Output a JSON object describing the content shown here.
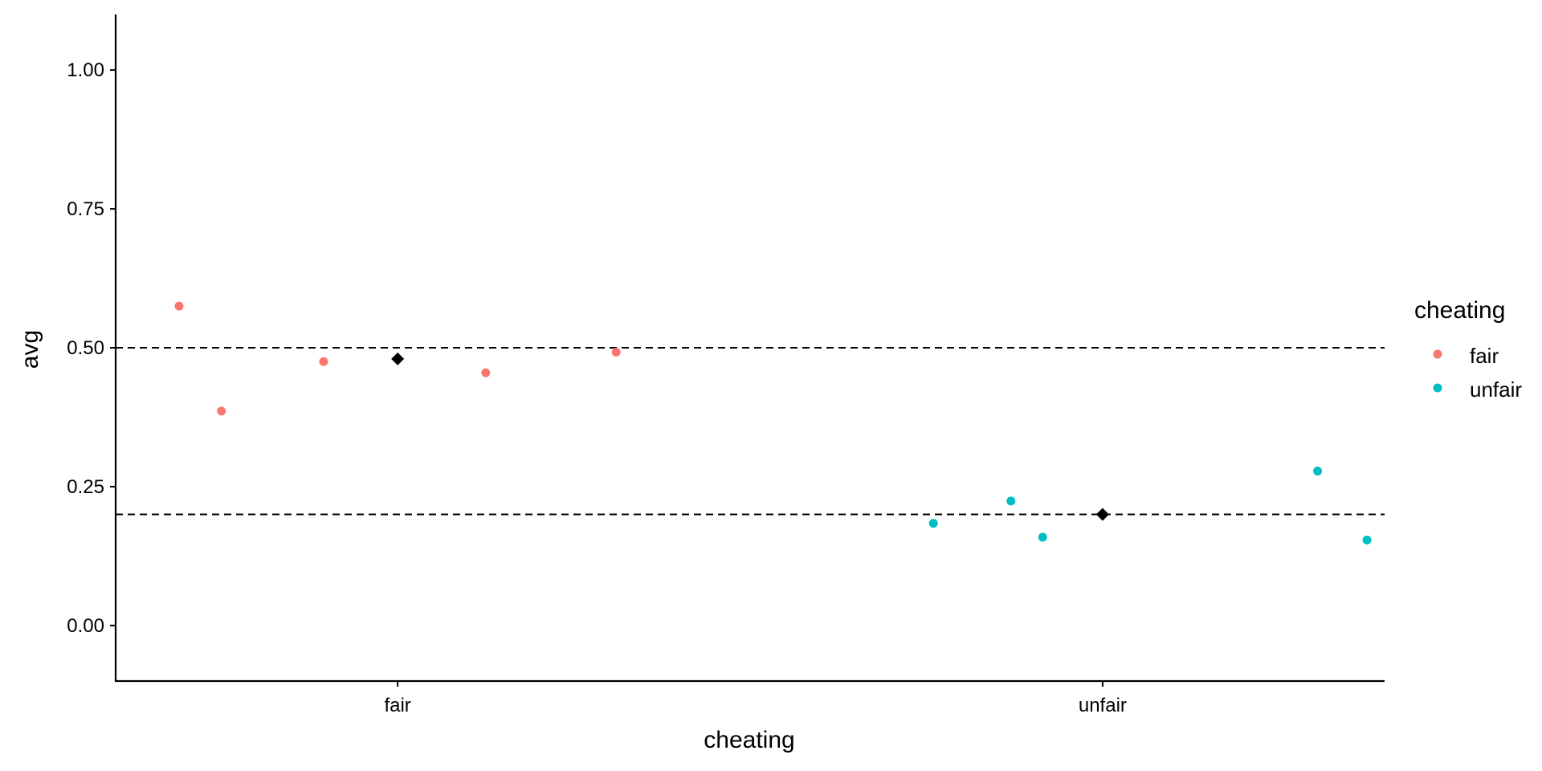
{
  "chart_data": {
    "type": "scatter",
    "xlabel": "cheating",
    "ylabel": "avg",
    "categories": [
      "fair",
      "unfair"
    ],
    "ylim": [
      -0.1,
      1.1
    ],
    "yticks": [
      0.0,
      0.25,
      0.5,
      0.75,
      1.0
    ],
    "ytick_labels": [
      "0.00",
      "0.25",
      "0.50",
      "0.75",
      "1.00"
    ],
    "grid": false,
    "legend": {
      "title": "cheating",
      "position": "right",
      "entries": [
        "fair",
        "unfair"
      ]
    },
    "colors": {
      "fair": "#F8766D",
      "unfair": "#00BFC4",
      "mean": "#000000",
      "reference_line": "#000000"
    },
    "reference_lines": [
      0.5,
      0.2
    ],
    "series": [
      {
        "name": "fair",
        "points": [
          {
            "x": "fair",
            "jitter": -0.31,
            "y": 0.575
          },
          {
            "x": "fair",
            "jitter": -0.25,
            "y": 0.386
          },
          {
            "x": "fair",
            "jitter": -0.105,
            "y": 0.475
          },
          {
            "x": "fair",
            "jitter": 0.125,
            "y": 0.455
          },
          {
            "x": "fair",
            "jitter": 0.31,
            "y": 0.492
          }
        ]
      },
      {
        "name": "unfair",
        "points": [
          {
            "x": "unfair",
            "jitter": -0.24,
            "y": 0.184
          },
          {
            "x": "unfair",
            "jitter": -0.13,
            "y": 0.224
          },
          {
            "x": "unfair",
            "jitter": -0.085,
            "y": 0.159
          },
          {
            "x": "unfair",
            "jitter": 0.305,
            "y": 0.278
          },
          {
            "x": "unfair",
            "jitter": 0.375,
            "y": 0.154
          }
        ]
      }
    ],
    "means": [
      {
        "x": "fair",
        "y": 0.48
      },
      {
        "x": "unfair",
        "y": 0.2
      }
    ]
  }
}
